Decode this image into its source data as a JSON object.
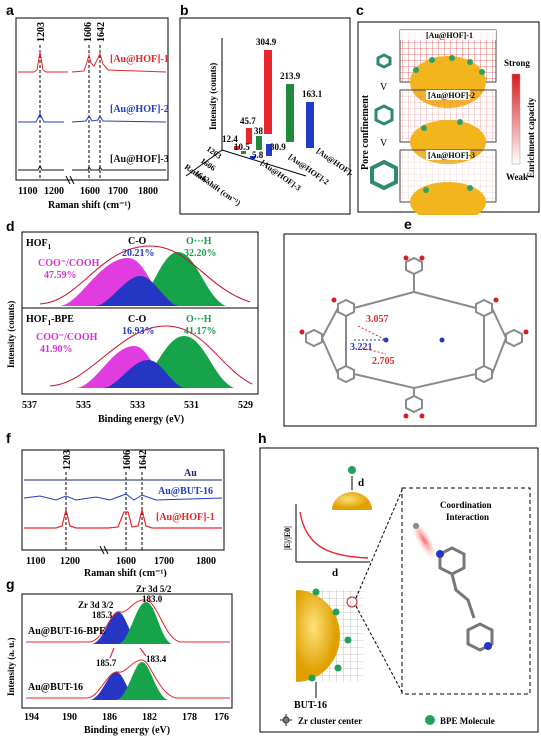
{
  "panel_labels": [
    "a",
    "b",
    "c",
    "d",
    "e",
    "f",
    "g",
    "h"
  ],
  "panel_a": {
    "peaks": [
      "1203",
      "1606",
      "1642"
    ],
    "traces": [
      {
        "name": "[Au@HOF]-1",
        "color": "#e8262b"
      },
      {
        "name": "[Au@HOF]-2",
        "color": "#1f3cc8"
      },
      {
        "name": "[Au@HOF]-3",
        "color": "#111111"
      }
    ],
    "x_ticks": [
      "1100",
      "1200",
      "1600",
      "1700",
      "1800"
    ],
    "xlabel": "Raman shift (cm⁻¹)"
  },
  "panel_b": {
    "ylabel": "Intensity (counts)",
    "xlabel": "Raman shift (cm⁻¹)",
    "categories": [
      "1203",
      "1606",
      "1642"
    ],
    "samples": [
      "[Au@HOF]-1",
      "[Au@HOF]-2",
      "[Au@HOF]-3"
    ],
    "colors": [
      "#e8262b",
      "#1f8a3a",
      "#1f3cc8"
    ],
    "value_labels": {
      "s3": [
        "12.4",
        "10.5",
        "5.8"
      ],
      "s2": [
        "45.7",
        "38",
        "30.9"
      ],
      "s1": [
        "304.9",
        "213.9",
        "163.1"
      ]
    }
  },
  "panel_c": {
    "side_label": "Pore confinement",
    "right_label": "Enrichment capacity",
    "strong": "Strong",
    "weak": "Weak",
    "boxes": [
      "[Au@HOF]-1",
      "[Au@HOF]-2",
      "[Au@HOF]-3"
    ],
    "relation": "V"
  },
  "panel_d": {
    "top_sample": "HOF",
    "top_sub": "1",
    "bottom_sample": "HOF",
    "bottom_sub": "1",
    "bottom_suffix": "-BPE",
    "top": {
      "coo": "COO⁻/COOH",
      "coo_pct": "47.59%",
      "co": "C-O",
      "co_pct": "20.21%",
      "oh": "O···H",
      "oh_pct": "32.20%"
    },
    "bottom": {
      "coo": "COO⁻/COOH",
      "coo_pct": "41.90%",
      "co": "C-O",
      "co_pct": "16.93%",
      "oh": "O···H",
      "oh_pct": "41.17%"
    },
    "ylabel": "Intensity (counts)",
    "xlabel": "Binding energy (eV)",
    "x_ticks": [
      "537",
      "535",
      "533",
      "531",
      "529"
    ]
  },
  "panel_e": {
    "distances": [
      "3.057",
      "3.221",
      "2.705"
    ]
  },
  "panel_f": {
    "peaks": [
      "1203",
      "1606",
      "1642"
    ],
    "traces": [
      "Au",
      "Au@BUT-16",
      "[Au@HOF]-1"
    ],
    "colors": [
      "#1a2a6c",
      "#1f3cc8",
      "#e8262b"
    ],
    "x_ticks": [
      "1100",
      "1200",
      "1600",
      "1700",
      "1800"
    ],
    "xlabel": "Raman shift (cm⁻¹)"
  },
  "panel_g": {
    "ylabel": "Intensity (a. u.)",
    "xlabel": "Binding energy (eV)",
    "labels": {
      "zr32": "Zr 3d 3/2",
      "zr52": "Zr 3d 5/2"
    },
    "top": {
      "sample": "Au@BUT-16-BPE",
      "e1": "185.3",
      "e2": "183.0"
    },
    "bottom": {
      "sample": "Au@BUT-16",
      "e1": "185.7",
      "e2": "183.4"
    },
    "x_ticks": [
      "194",
      "190",
      "186",
      "182",
      "178",
      "176"
    ]
  },
  "panel_h": {
    "d_label": "d",
    "e_ratio": "|E|/|E0|",
    "coordination": "Coordination",
    "interaction": "Interaction",
    "but16": "BUT-16",
    "legend_zr": "Zr cluster center",
    "legend_bpe": "BPE Molecule"
  }
}
